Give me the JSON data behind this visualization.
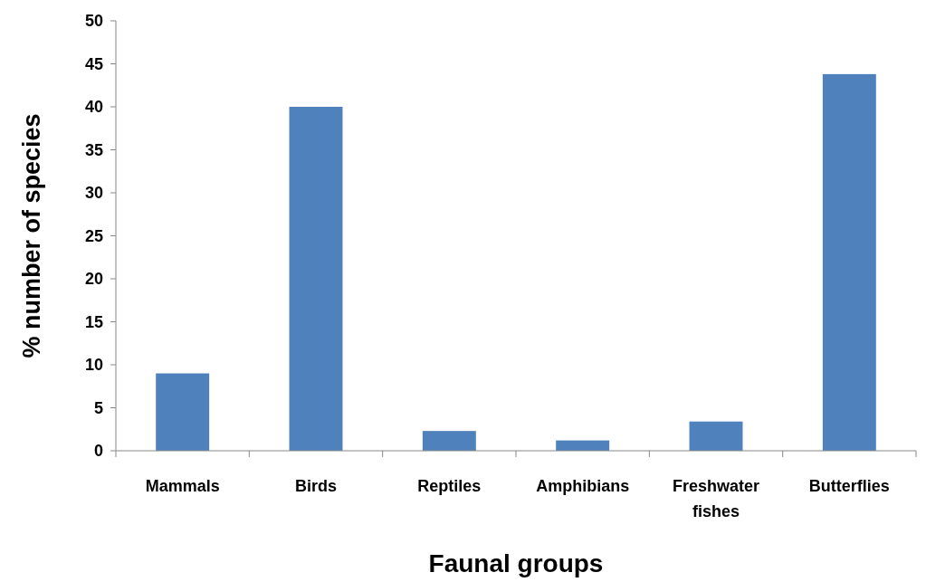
{
  "chart_data": {
    "type": "bar",
    "xlabel": "Faunal groups",
    "ylabel": "% number of species",
    "categories": [
      "Mammals",
      "Birds",
      "Reptiles",
      "Amphibians",
      "Freshwater fishes",
      "Butterflies"
    ],
    "values": [
      9,
      40,
      2.3,
      1.2,
      3.4,
      43.8
    ],
    "color": "#4f81bd",
    "ylim": [
      0,
      50
    ],
    "yticks": [
      0,
      5,
      10,
      15,
      20,
      25,
      30,
      35,
      40,
      45,
      50
    ],
    "grid": false
  }
}
